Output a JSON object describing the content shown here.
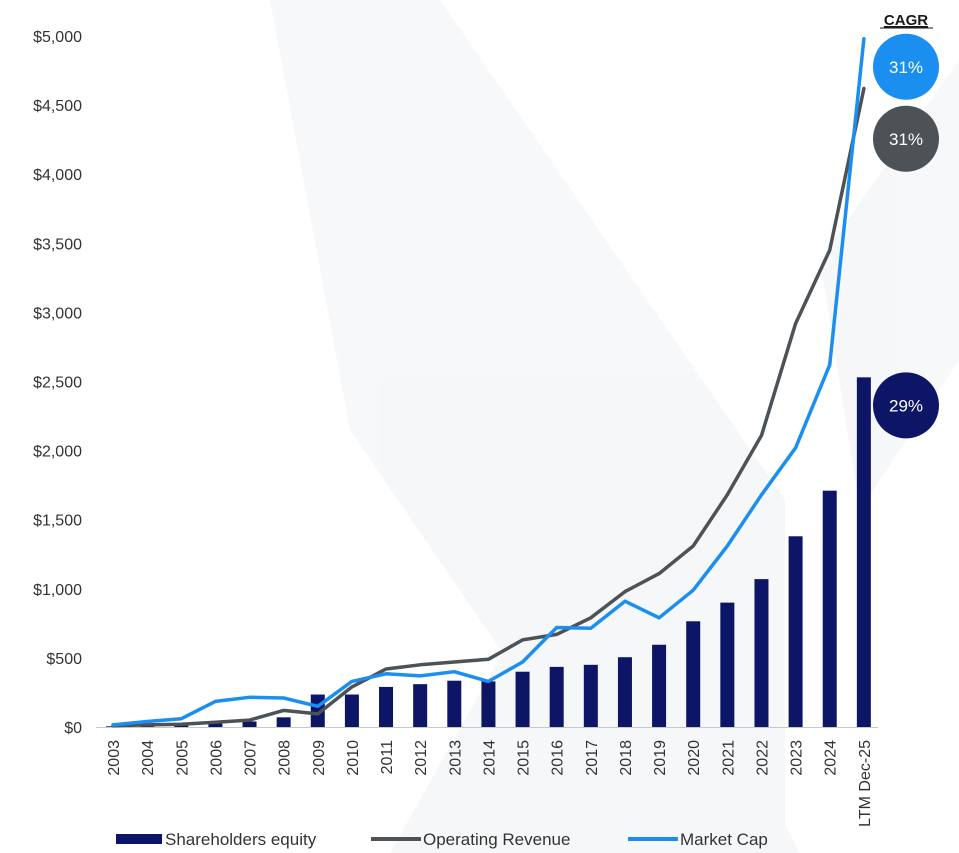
{
  "chart_data": {
    "type": "bar",
    "categories": [
      "2003",
      "2004",
      "2005",
      "2006",
      "2007",
      "2008",
      "2009",
      "2010",
      "2011",
      "2012",
      "2013",
      "2014",
      "2015",
      "2016",
      "2017",
      "2018",
      "2019",
      "2020",
      "2021",
      "2022",
      "2023",
      "2024",
      "LTM Dec-25"
    ],
    "ylim": [
      0,
      5000
    ],
    "yticks": [
      0,
      500,
      1000,
      1500,
      2000,
      2500,
      3000,
      3500,
      4000,
      4500,
      5000
    ],
    "ytick_labels": [
      "$0",
      "$500",
      "$1,000",
      "$1,500",
      "$2,000",
      "$2,500",
      "$3,000",
      "$3,500",
      "$4,000",
      "$4,500",
      "$5,000"
    ],
    "grid": false,
    "legend_position": "bottom",
    "series": [
      {
        "name": "Shareholders equity",
        "kind": "bar",
        "color": "#0d1566",
        "values": [
          5,
          10,
          15,
          30,
          40,
          70,
          235,
          235,
          290,
          310,
          335,
          330,
          400,
          435,
          450,
          505,
          595,
          765,
          900,
          1070,
          1380,
          1710,
          2530
        ]
      },
      {
        "name": "Operating Revenue",
        "kind": "line",
        "color": "#4d5257",
        "values": [
          10,
          15,
          20,
          35,
          50,
          120,
          95,
          290,
          420,
          450,
          470,
          490,
          630,
          670,
          790,
          980,
          1110,
          1310,
          1680,
          2110,
          2920,
          3450,
          4620
        ]
      },
      {
        "name": "Market Cap",
        "kind": "line",
        "color": "#1b8fef",
        "values": [
          15,
          40,
          60,
          185,
          215,
          210,
          150,
          330,
          385,
          370,
          400,
          330,
          470,
          720,
          715,
          910,
          790,
          990,
          1310,
          1680,
          2020,
          2620,
          4980
        ]
      }
    ],
    "cagr": {
      "title": "CAGR",
      "items": [
        {
          "label": "31%",
          "color": "#1b8fef",
          "series": "Market Cap",
          "value": 4980
        },
        {
          "label": "31%",
          "color": "#4d5257",
          "series": "Operating Revenue",
          "value": 4620
        },
        {
          "label": "29%",
          "color": "#0d1566",
          "series": "Shareholders equity",
          "value": 2530
        }
      ]
    }
  }
}
